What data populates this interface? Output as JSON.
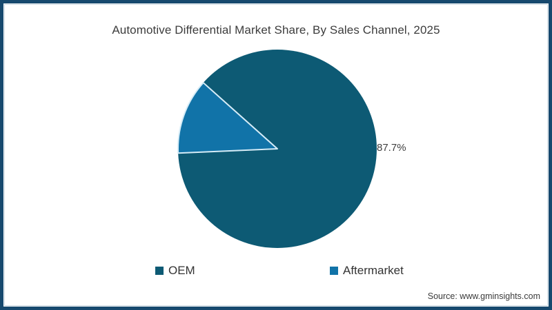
{
  "title": "Automotive Differential Market Share, By Sales Channel, 2025",
  "chart_data": {
    "type": "pie",
    "categories": [
      "OEM",
      "Aftermarket"
    ],
    "values": [
      87.7,
      12.3
    ],
    "colors": [
      "#0d5a74",
      "#1173a8"
    ],
    "slice_border_color": "#d6ecf7",
    "start_angle_deg": 267.5,
    "data_labels": [
      {
        "slice": "OEM",
        "text": "87.7%",
        "position": "right-of-pie"
      }
    ],
    "legend_position": "bottom",
    "title": "Automotive Differential Market Share, By Sales Channel, 2025"
  },
  "legend": {
    "items": [
      {
        "label": "OEM",
        "color": "#0d5a74"
      },
      {
        "label": "Aftermarket",
        "color": "#1173a8"
      }
    ]
  },
  "source": {
    "text": "Source: www.gminsights.com"
  },
  "colors": {
    "frame_border": "#17496e",
    "inner_highlight": "#cdd9e2",
    "background": "#ffffff",
    "title_text": "#3c3c3c"
  }
}
